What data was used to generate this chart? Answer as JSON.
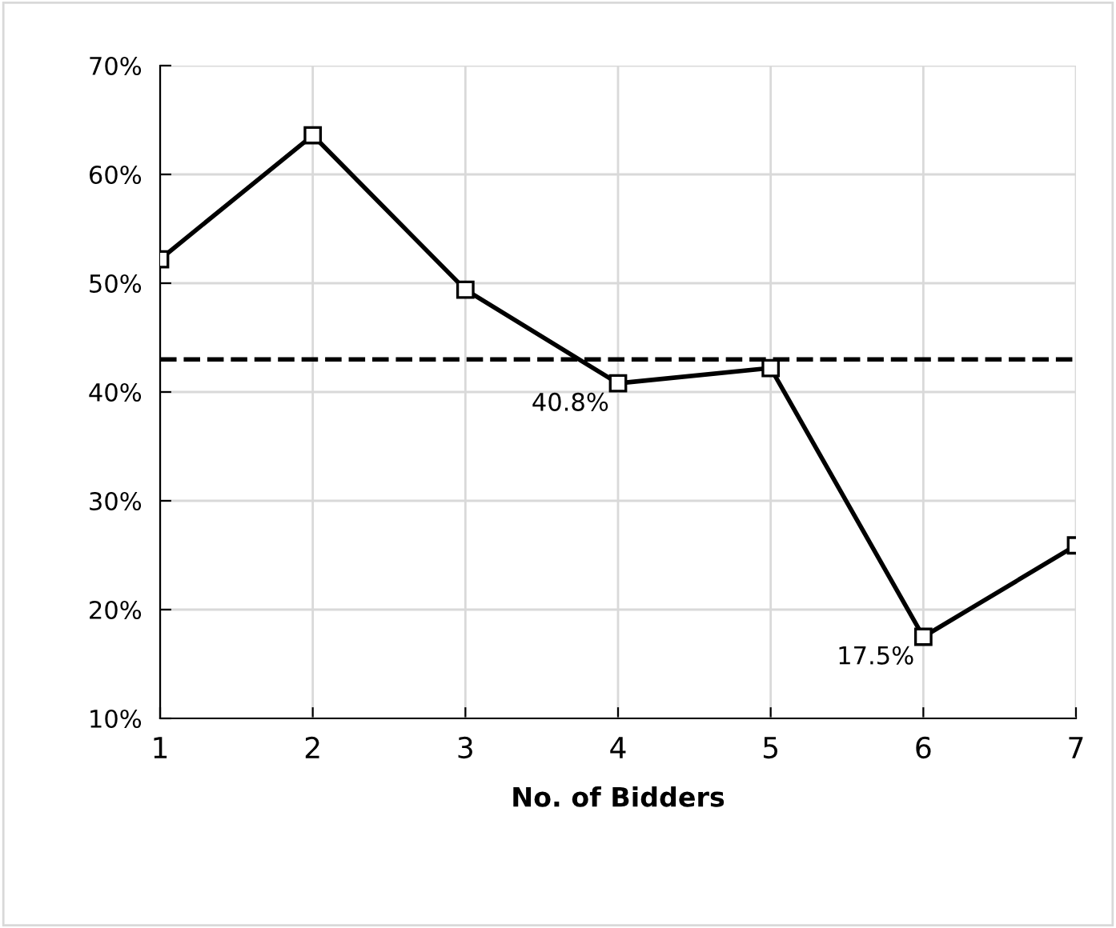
{
  "chart_data": {
    "type": "line",
    "xlabel": "No. of Bidders",
    "x": [
      1,
      2,
      3,
      4,
      5,
      6,
      7
    ],
    "series": [
      {
        "color": "#000000",
        "values": [
          52.2,
          63.6,
          49.4,
          40.8,
          42.2,
          17.5,
          25.9
        ]
      }
    ],
    "marker": "square",
    "line_style": "solid",
    "xlim": [
      1,
      7
    ],
    "xticks": [
      1,
      2,
      3,
      4,
      5,
      6,
      7
    ],
    "ylim": [
      10,
      70
    ],
    "yticks": [
      {
        "value": 10,
        "label": "10%"
      },
      {
        "value": 20,
        "label": "20%"
      },
      {
        "value": 30,
        "label": "30%"
      },
      {
        "value": 40,
        "label": "40%"
      },
      {
        "value": 50,
        "label": "50%"
      },
      {
        "value": 60,
        "label": "60%"
      },
      {
        "value": 70,
        "label": "70%"
      }
    ],
    "grid": true,
    "ref_lines": [
      {
        "axis": "y",
        "value": 43,
        "color": "#000000",
        "line_style": "dashed"
      }
    ],
    "annotations": [
      {
        "text": "40.8%",
        "x": 4,
        "y": 40.8
      },
      {
        "text": "17.5%",
        "x": 6,
        "y": 17.5
      }
    ]
  }
}
